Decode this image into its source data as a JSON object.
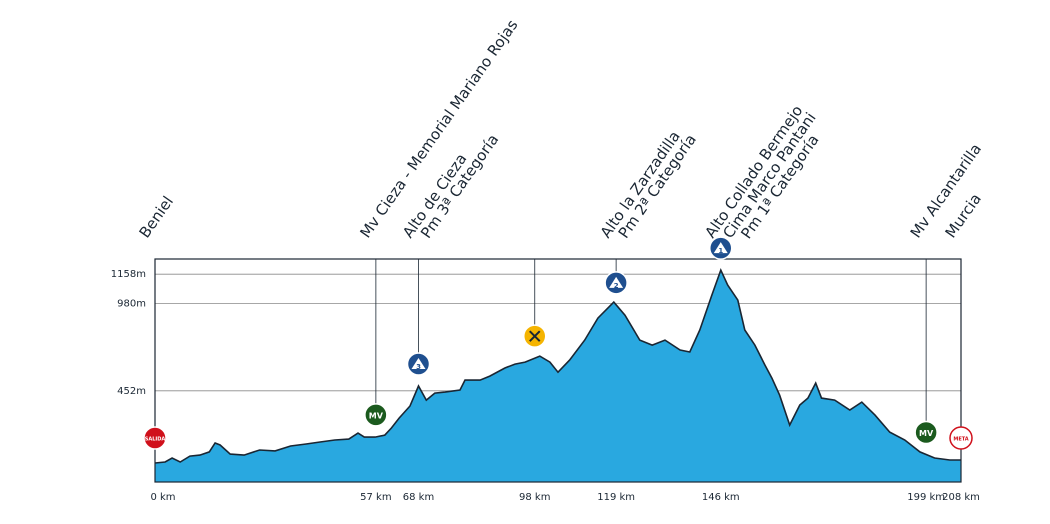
{
  "chart_data": {
    "type": "area",
    "color": "#29a8e0",
    "line_color": "#1a2633",
    "xlim": [
      0,
      208
    ],
    "ylim": [
      -100,
      1250
    ],
    "grid": true,
    "yticks": [
      {
        "value": 452,
        "label": "452m"
      },
      {
        "value": 980,
        "label": "980m"
      },
      {
        "value": 1158,
        "label": "1158m"
      }
    ],
    "xticks": [
      {
        "value": 0,
        "label": "0 km",
        "name": [
          "Beniel"
        ],
        "icon": "start",
        "icon_label": "SALIDA"
      },
      {
        "value": 57,
        "label": "57 km",
        "name": [
          "Mv Cieza - Memorial Mariano Rojas"
        ],
        "icon": "sprint",
        "icon_label": "MV"
      },
      {
        "value": 68,
        "label": "68 km",
        "name": [
          "Alto de Cieza",
          "Pm 3ª Categoría"
        ],
        "icon": "climb",
        "icon_label": "3"
      },
      {
        "value": 98,
        "label": "98 km",
        "icon": "feed"
      },
      {
        "value": 119,
        "label": "119 km",
        "name": [
          "Alto la Zarzadilla",
          "Pm 2ª Categoría"
        ],
        "icon": "climb",
        "icon_label": "2"
      },
      {
        "value": 146,
        "label": "146 km",
        "name": [
          "Alto Collado Bermejo",
          "Cima Marco Pantani",
          "Pm 1ª Categoría"
        ],
        "icon": "climb",
        "icon_label": "1"
      },
      {
        "value": 199,
        "label": "199 km",
        "name": [
          "Mv Alcantarilla"
        ],
        "icon": "sprint",
        "icon_label": "MV"
      },
      {
        "value": 208,
        "label": "208 km",
        "name": [
          "Murcia"
        ],
        "icon": "finish",
        "icon_label": "META"
      }
    ],
    "x": [
      0,
      2.6,
      4.4,
      6.5,
      9,
      11.6,
      14,
      15.5,
      16.8,
      19.4,
      23,
      27,
      31,
      35,
      39,
      42.6,
      46.4,
      50,
      52.4,
      54,
      56.8,
      59.3,
      61,
      63,
      65.8,
      68,
      70,
      72.2,
      74.8,
      78.7,
      80,
      83.9,
      86.4,
      90.3,
      92.9,
      95.5,
      99.3,
      101.9,
      104,
      107,
      110.9,
      114.3,
      118.4,
      121.3,
      125.1,
      128.3,
      131.6,
      135.5,
      138,
      140.6,
      143.7,
      146,
      147.8,
      150.4,
      152.2,
      154.8,
      157.4,
      159.2,
      161.2,
      163.8,
      166.4,
      168.5,
      170.5,
      172,
      175.4,
      179.3,
      182.4,
      185.8,
      189.6,
      193.5,
      197.4,
      201.2,
      205.1,
      208
    ],
    "values": [
      15,
      21,
      45,
      21,
      57,
      63,
      82,
      136,
      124,
      69,
      63,
      94,
      88,
      118,
      130,
      142,
      154,
      160,
      196,
      172,
      172,
      184,
      227,
      287,
      360,
      481,
      396,
      438,
      444,
      457,
      517,
      517,
      541,
      590,
      614,
      626,
      662,
      626,
      565,
      638,
      759,
      892,
      989,
      910,
      759,
      729,
      759,
      699,
      687,
      820,
      1031,
      1183,
      1092,
      1001,
      820,
      729,
      608,
      529,
      426,
      245,
      366,
      408,
      499,
      408,
      396,
      336,
      384,
      305,
      202,
      154,
      82,
      45,
      33,
      33
    ]
  }
}
